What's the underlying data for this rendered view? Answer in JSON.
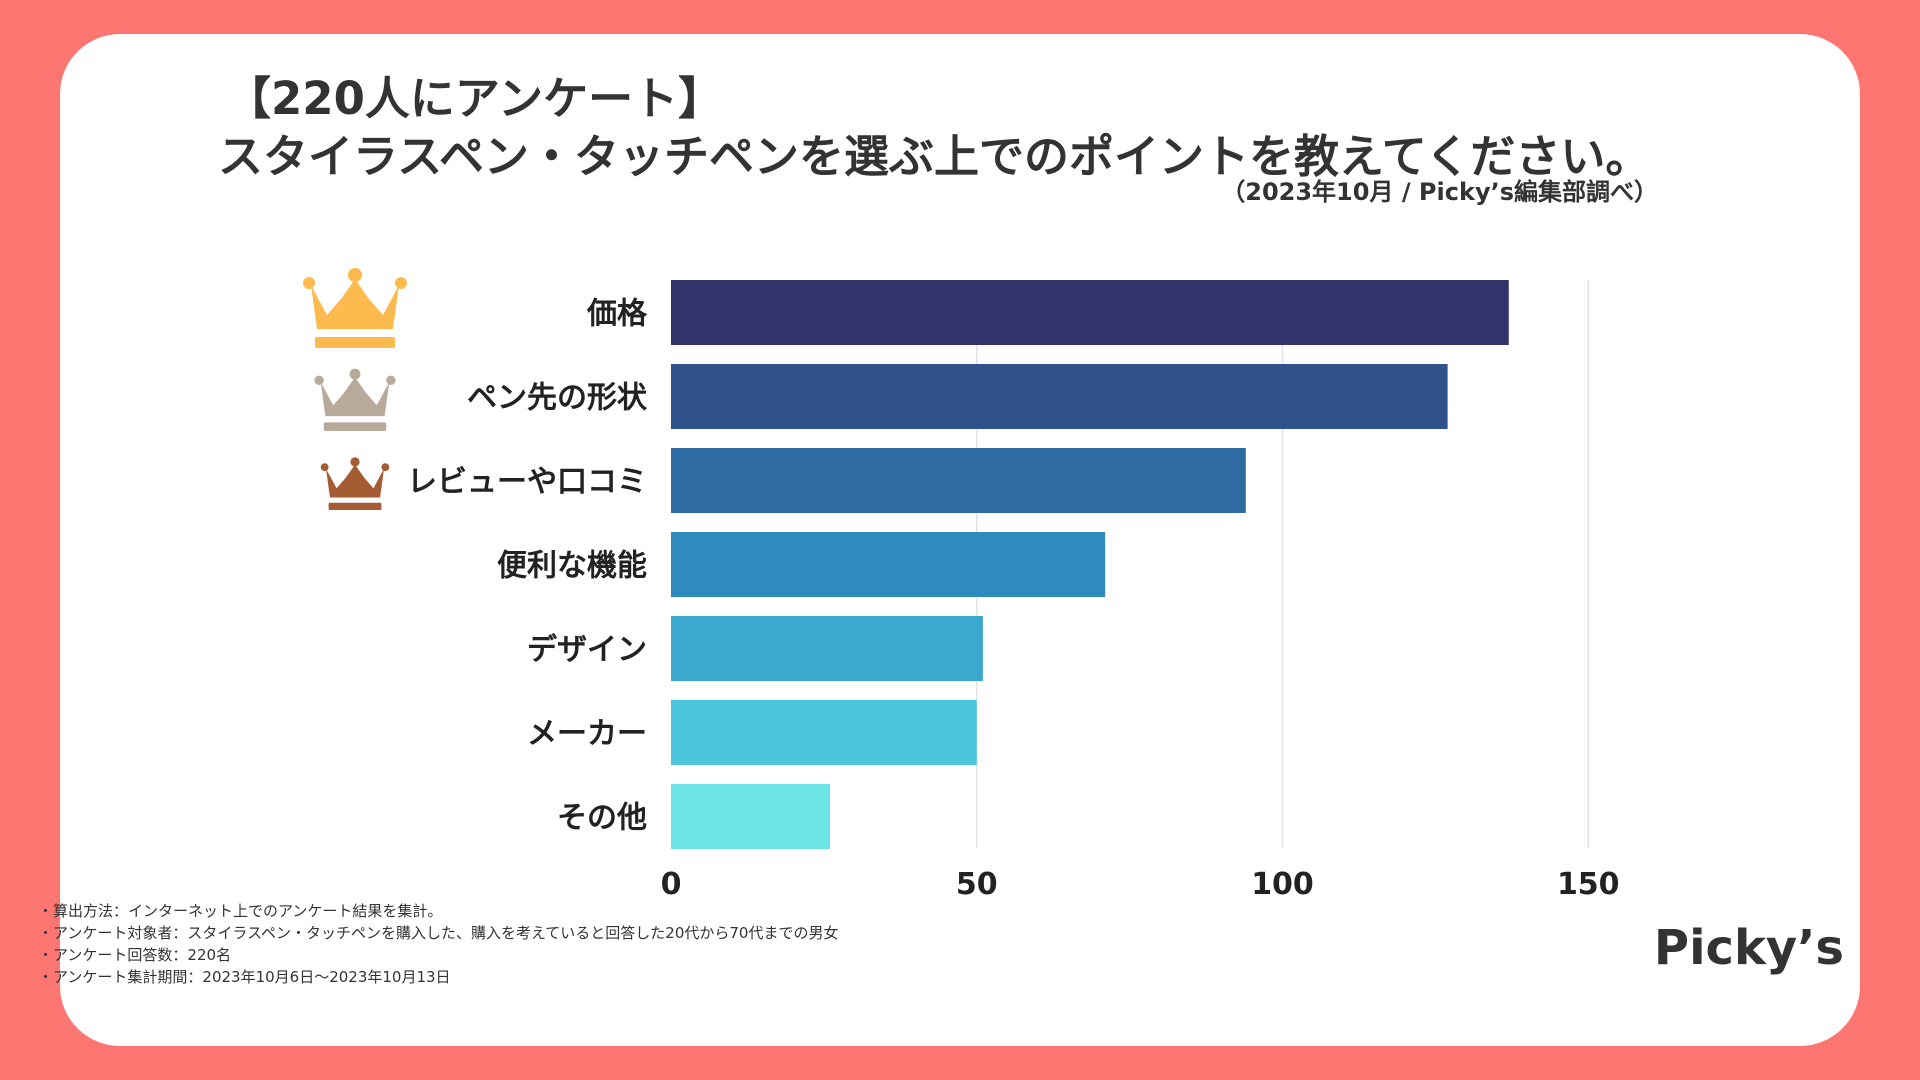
{
  "header": {
    "title_line1": "【220人にアンケート】",
    "title_line2": "スタイラスペン・タッチペンを選ぶ上でのポイントを教えてください。",
    "source": "（2023年10月 / Picky’s編集部調べ）"
  },
  "chart_data": {
    "type": "bar",
    "orientation": "horizontal",
    "categories": [
      "価格",
      "ペン先の形状",
      "レビューや口コミ",
      "便利な機能",
      "デザイン",
      "メーカー",
      "その他"
    ],
    "values": [
      137,
      127,
      94,
      71,
      51,
      50,
      26
    ],
    "colors": [
      "#30346b",
      "#30528a",
      "#2e6ca3",
      "#2f8bbd",
      "#3aa8cf",
      "#4cc6dc",
      "#6ce4e6"
    ],
    "xlim": [
      0,
      175
    ],
    "xticks": [
      0,
      50,
      100,
      150
    ],
    "xtick_labels": [
      "0",
      "50",
      "100",
      "150"
    ],
    "grid": true,
    "rank_icons": [
      "crown-gold",
      "crown-silver",
      "crown-bronze"
    ],
    "rank_colors": [
      "#fdbb4f",
      "#b7aa9b",
      "#a55c32"
    ]
  },
  "notes": [
    "・算出方法：インターネット上でのアンケート結果を集計。",
    "・アンケート対象者：スタイラスペン・タッチペンを購入した、購入を考えていると回答した20代から70代までの男女",
    "・アンケート回答数：220名",
    "・アンケート集計期間：2023年10月6日〜2023年10月13日"
  ],
  "brand": "Picky’s"
}
